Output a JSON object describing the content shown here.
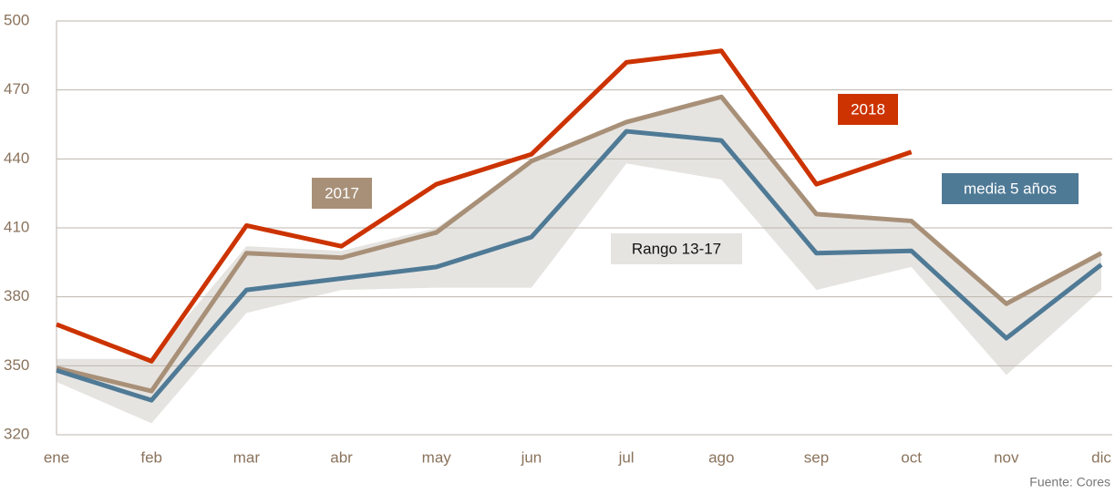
{
  "chart_data": {
    "type": "line",
    "categories": [
      "ene",
      "feb",
      "mar",
      "abr",
      "may",
      "jun",
      "jul",
      "ago",
      "sep",
      "oct",
      "nov",
      "dic"
    ],
    "series": [
      {
        "name": "2018",
        "color": "#cc3300",
        "values": [
          368,
          352,
          411,
          402,
          429,
          442,
          482,
          487,
          429,
          443,
          null,
          null
        ]
      },
      {
        "name": "2017",
        "color": "#a89078",
        "values": [
          349,
          339,
          399,
          397,
          408,
          439,
          456,
          467,
          416,
          413,
          377,
          399
        ]
      },
      {
        "name": "media 5 años",
        "color": "#4f7a96",
        "values": [
          348,
          335,
          383,
          388,
          393,
          406,
          452,
          448,
          399,
          400,
          362,
          394
        ]
      }
    ],
    "band": {
      "name": "Rango 13-17",
      "color": "#e6e4e1",
      "lower": [
        343,
        325,
        373,
        383,
        384,
        384,
        438,
        431,
        383,
        393,
        346,
        383
      ],
      "upper": [
        353,
        353,
        402,
        400,
        410,
        439,
        456,
        467,
        416,
        413,
        378,
        399
      ]
    },
    "ylim": [
      320,
      500
    ],
    "yticks": [
      320,
      350,
      380,
      410,
      440,
      470,
      500
    ],
    "grid": true,
    "source": "Fuente: Cores"
  }
}
